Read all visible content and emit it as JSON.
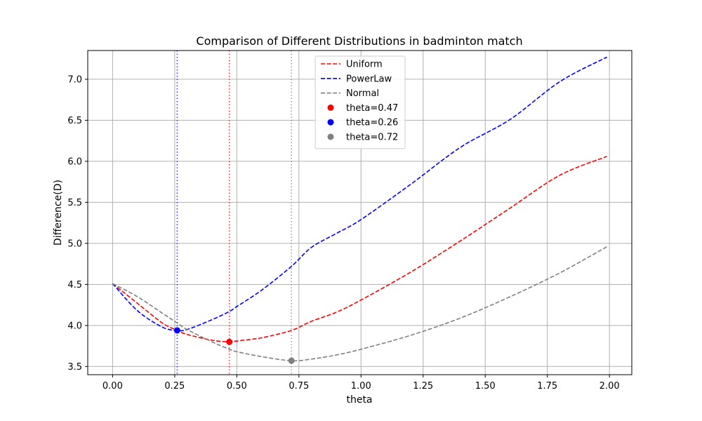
{
  "chart_data": {
    "type": "line",
    "title": "Comparison of Different Distributions in badminton match",
    "xlabel": "theta",
    "ylabel": "Difference(D)",
    "xlim": [
      -0.1,
      2.09
    ],
    "ylim": [
      3.4,
      7.35
    ],
    "xticks": [
      0.0,
      0.25,
      0.5,
      0.75,
      1.0,
      1.25,
      1.5,
      1.75,
      2.0
    ],
    "xtick_labels": [
      "0.00",
      "0.25",
      "0.50",
      "0.75",
      "1.00",
      "1.25",
      "1.50",
      "1.75",
      "2.00"
    ],
    "yticks": [
      3.5,
      4.0,
      4.5,
      5.0,
      5.5,
      6.0,
      6.5,
      7.0
    ],
    "ytick_labels": [
      "3.5",
      "4.0",
      "4.5",
      "5.0",
      "5.5",
      "6.0",
      "6.5",
      "7.0"
    ],
    "grid": true,
    "legend_position": "top-center",
    "x": [
      0.0,
      0.1,
      0.2,
      0.26,
      0.3,
      0.4,
      0.47,
      0.5,
      0.6,
      0.72,
      0.8,
      0.9,
      1.0,
      1.2,
      1.4,
      1.6,
      1.8,
      1.99
    ],
    "series": [
      {
        "name": "Uniform",
        "color": "#ff0000",
        "style": "dashed",
        "values": [
          4.51,
          4.27,
          4.03,
          3.94,
          3.89,
          3.82,
          3.8,
          3.81,
          3.85,
          3.94,
          4.05,
          4.16,
          4.31,
          4.65,
          5.03,
          5.43,
          5.83,
          6.06
        ]
      },
      {
        "name": "PowerLaw",
        "color": "#0000ff",
        "style": "dashed",
        "values": [
          4.51,
          4.18,
          3.98,
          3.94,
          3.95,
          4.07,
          4.17,
          4.23,
          4.43,
          4.72,
          4.95,
          5.12,
          5.29,
          5.72,
          6.17,
          6.51,
          6.97,
          7.27
        ]
      },
      {
        "name": "Normal",
        "color": "#808080",
        "style": "dashed",
        "values": [
          4.51,
          4.35,
          4.15,
          4.03,
          3.95,
          3.8,
          3.71,
          3.68,
          3.62,
          3.57,
          3.59,
          3.64,
          3.71,
          3.88,
          4.09,
          4.35,
          4.64,
          4.96
        ]
      }
    ],
    "minima": [
      {
        "label": "theta=0.47",
        "theta": 0.47,
        "value": 3.8,
        "color": "#ff0000"
      },
      {
        "label": "theta=0.26",
        "theta": 0.26,
        "value": 3.94,
        "color": "#0000ff"
      },
      {
        "label": "theta=0.72",
        "theta": 0.72,
        "value": 3.57,
        "color": "#808080"
      }
    ]
  }
}
